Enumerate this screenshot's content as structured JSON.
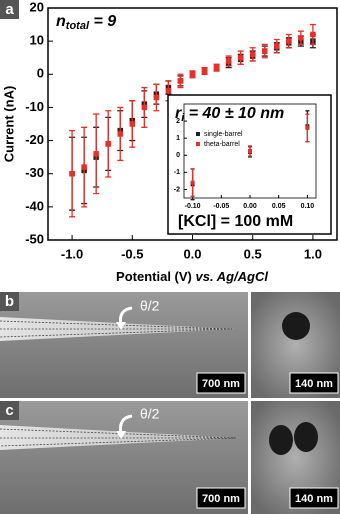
{
  "chart_data": [
    {
      "type": "scatter",
      "panel_label": "a",
      "annotation": {
        "text": "n",
        "subscript": "total",
        "rest": " = 9"
      },
      "x_label": {
        "text": "Potential (V) ",
        "italic": "vs. Ag/AgCl"
      },
      "y_label": "Current (nA)",
      "x": [
        -1.0,
        -0.9,
        -0.8,
        -0.7,
        -0.6,
        -0.5,
        -0.4,
        -0.3,
        -0.2,
        -0.1,
        0.0,
        0.1,
        0.2,
        0.3,
        0.4,
        0.5,
        0.6,
        0.7,
        0.8,
        0.9,
        1.0
      ],
      "xlim": [
        -1.2,
        1.2
      ],
      "xticks": [
        {
          "value": -1,
          "label": "-1.0"
        },
        -0.5,
        {
          "value": 0,
          "label": "0.0"
        },
        0.5,
        {
          "value": 1,
          "label": "1.0"
        }
      ],
      "ylim": [
        -50,
        20
      ],
      "yticks": [
        -50,
        -40,
        -30,
        -20,
        -10,
        0,
        10,
        20
      ],
      "series": [
        {
          "color": "#222222",
          "values": [
            -30,
            -29,
            -25,
            -21,
            -17,
            -14,
            -9,
            -6,
            -4,
            -2,
            0,
            1,
            2,
            3.5,
            4.5,
            5.5,
            7,
            8,
            9.5,
            10,
            10
          ],
          "errors": [
            11,
            10,
            9,
            8,
            6,
            6,
            4,
            3,
            2,
            1.5,
            1,
            1,
            1,
            1.5,
            1.5,
            1.5,
            1.5,
            1.5,
            1.5,
            1.5,
            2
          ]
        },
        {
          "color": "#e8302a",
          "values": [
            -30,
            -28,
            -24,
            -21,
            -18,
            -15,
            -10,
            -7,
            -5,
            -2,
            0,
            1,
            2,
            4,
            5,
            6,
            7,
            8.5,
            10,
            11,
            12
          ],
          "errors": [
            13,
            12,
            12,
            10,
            8,
            7,
            6,
            4,
            3,
            2,
            1,
            1,
            1,
            1.5,
            2,
            2,
            2,
            2,
            2,
            2,
            3
          ]
        }
      ]
    },
    {
      "type": "scatter",
      "annotation": {
        "text": "r",
        "subscript": "i",
        "rest": " = 40 ± 10 nm"
      },
      "note": "[KCl] = 100 mM",
      "x": [
        -0.1,
        0.0,
        0.1
      ],
      "xlim": [
        -0.115,
        0.115
      ],
      "xticks": [
        {
          "value": -0.1,
          "label": "-0.10"
        },
        {
          "value": -0.05,
          "label": "-0.05"
        },
        {
          "value": 0,
          "label": "0.00"
        },
        {
          "value": 0.05,
          "label": "0.05"
        },
        {
          "value": 0.1,
          "label": "0.10"
        }
      ],
      "ylim": [
        -2.5,
        3
      ],
      "yticks": [
        -2,
        -1,
        0,
        1,
        2
      ],
      "series": [
        {
          "name": "single-barrel",
          "color": "#222222",
          "values": [
            -1.7,
            0.2,
            1.7
          ],
          "errors": [
            0.9,
            0.3,
            0.9
          ]
        },
        {
          "name": "theta-barrel",
          "color": "#e8302a",
          "values": [
            -1.6,
            0.25,
            1.6
          ],
          "errors": [
            0.8,
            0.3,
            0.8
          ]
        }
      ]
    }
  ],
  "images": {
    "b": {
      "panel_label": "b",
      "angle_label": "θ/2",
      "scale_left": "700 nm",
      "scale_right": "140 nm"
    },
    "c": {
      "panel_label": "c",
      "angle_label": "θ/2",
      "scale_left": "700 nm",
      "scale_right": "140 nm"
    }
  }
}
